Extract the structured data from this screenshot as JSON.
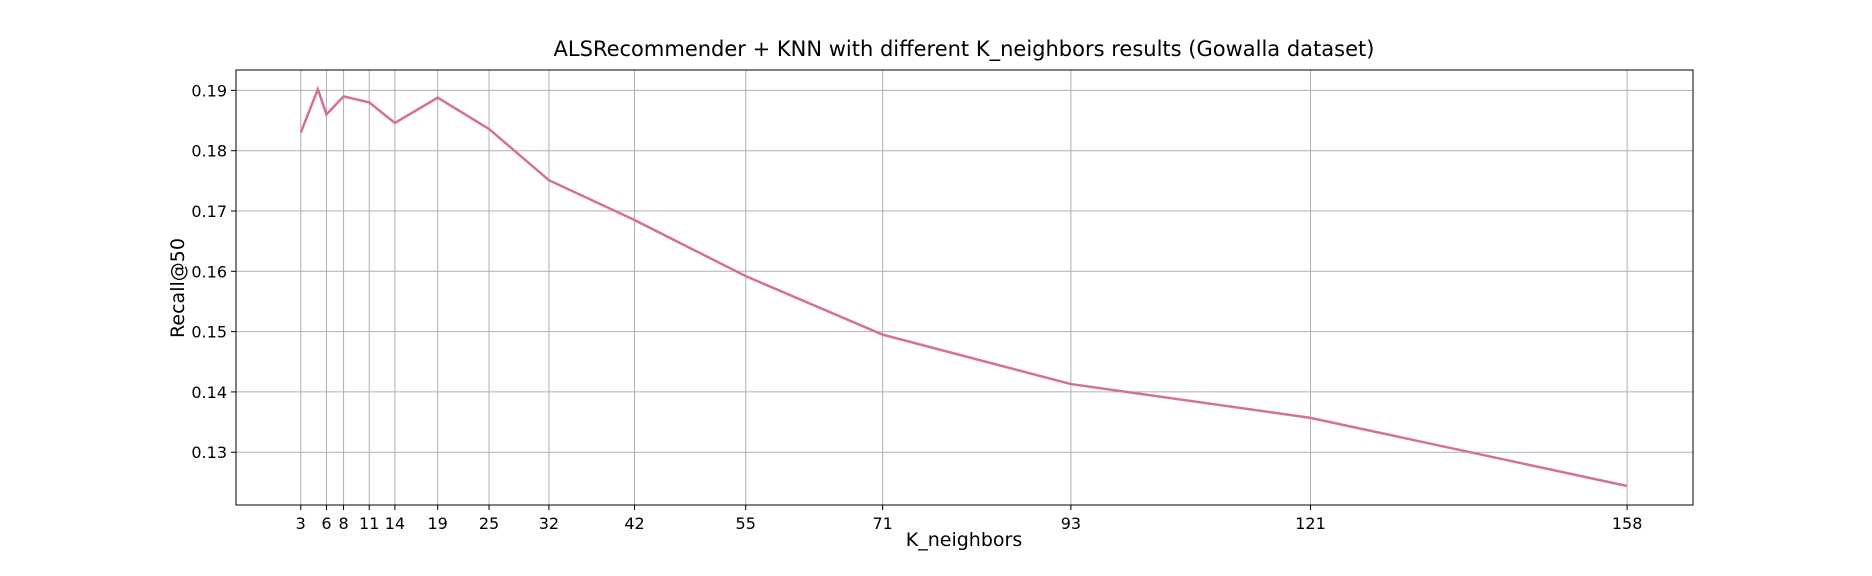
{
  "chart_data": {
    "type": "line",
    "title": "ALSRecommender + KNN with different K_neighbors results (Gowalla dataset)",
    "xlabel": "K_neighbors",
    "ylabel": "Recall@50",
    "x": [
      3,
      5,
      6,
      8,
      11,
      14,
      19,
      25,
      32,
      42,
      55,
      71,
      93,
      121,
      158
    ],
    "series": [
      {
        "name": "Recall@50",
        "color": "#d5709a",
        "values": [
          0.183,
          0.1902,
          0.186,
          0.189,
          0.188,
          0.1846,
          0.1888,
          0.1836,
          0.1751,
          0.1685,
          0.1592,
          0.1495,
          0.1413,
          0.1357,
          0.1244
        ]
      }
    ],
    "xlim": [
      -4.57,
      165.7
    ],
    "ylim": [
      0.12125,
      0.19338
    ],
    "xticks": [
      3,
      6,
      8,
      11,
      14,
      19,
      25,
      32,
      42,
      55,
      71,
      93,
      121,
      158
    ],
    "yticks": [
      0.13,
      0.14,
      0.15,
      0.16,
      0.17,
      0.18,
      0.19
    ],
    "grid": true
  }
}
